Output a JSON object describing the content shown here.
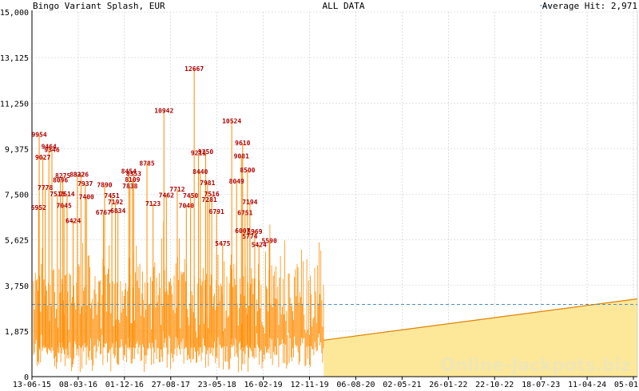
{
  "header": {
    "left_title": "Bingo Variant Splash, EUR",
    "center_title": "ALL DATA",
    "legend_label": "Average Hit: 2,971"
  },
  "watermark": "Online-Jackpots.biz",
  "colors": {
    "bars": "#ff8c00",
    "labels": "#b00000",
    "trend_fill": "#fde89a",
    "trend_line": "#e08000",
    "average_line": "#4a90c8",
    "grid": "#c8c8c8"
  },
  "chart_data": {
    "type": "bar",
    "title": "Bingo Variant Splash, EUR",
    "subtitle": "ALL DATA",
    "ylim": [
      0,
      15000
    ],
    "y_ticks": [
      "0",
      "1,875",
      "3,750",
      "5,625",
      "7,500",
      "9,375",
      "11,250",
      "13,125",
      "15,000"
    ],
    "x_ticks": [
      "13-06-15",
      "08-03-16",
      "01-12-16",
      "27-08-17",
      "23-05-18",
      "16-02-19",
      "12-11-19",
      "06-08-20",
      "02-05-21",
      "26-01-22",
      "22-10-22",
      "18-07-23",
      "11-04-24",
      "05-01-25"
    ],
    "grid": true,
    "average_hit": 2971,
    "data_start_fraction": 0.0,
    "data_end_fraction": 0.482,
    "trend_end_value": 3200,
    "trend_start_value": 1500,
    "labeled_peaks": [
      {
        "pos": 0.012,
        "value": 9954
      },
      {
        "pos": 0.018,
        "value": 9027
      },
      {
        "pos": 0.028,
        "value": 9464
      },
      {
        "pos": 0.033,
        "value": 9346
      },
      {
        "pos": 0.022,
        "value": 7778
      },
      {
        "pos": 0.011,
        "value": 6952
      },
      {
        "pos": 0.042,
        "value": 7513
      },
      {
        "pos": 0.051,
        "value": 8275
      },
      {
        "pos": 0.047,
        "value": 8096
      },
      {
        "pos": 0.058,
        "value": 7514
      },
      {
        "pos": 0.053,
        "value": 7045
      },
      {
        "pos": 0.068,
        "value": 6424
      },
      {
        "pos": 0.075,
        "value": 8322
      },
      {
        "pos": 0.081,
        "value": 8326
      },
      {
        "pos": 0.088,
        "value": 7937
      },
      {
        "pos": 0.09,
        "value": 7400
      },
      {
        "pos": 0.12,
        "value": 7890
      },
      {
        "pos": 0.132,
        "value": 7451
      },
      {
        "pos": 0.138,
        "value": 7192
      },
      {
        "pos": 0.118,
        "value": 6767
      },
      {
        "pos": 0.142,
        "value": 6834
      },
      {
        "pos": 0.16,
        "value": 8454
      },
      {
        "pos": 0.168,
        "value": 8353
      },
      {
        "pos": 0.162,
        "value": 7838
      },
      {
        "pos": 0.166,
        "value": 8109
      },
      {
        "pos": 0.19,
        "value": 8785
      },
      {
        "pos": 0.2,
        "value": 7123
      },
      {
        "pos": 0.218,
        "value": 10942
      },
      {
        "pos": 0.222,
        "value": 7462
      },
      {
        "pos": 0.24,
        "value": 7712
      },
      {
        "pos": 0.268,
        "value": 12667
      },
      {
        "pos": 0.255,
        "value": 7040
      },
      {
        "pos": 0.262,
        "value": 7450
      },
      {
        "pos": 0.275,
        "value": 9211
      },
      {
        "pos": 0.287,
        "value": 9250
      },
      {
        "pos": 0.278,
        "value": 8440
      },
      {
        "pos": 0.29,
        "value": 7981
      },
      {
        "pos": 0.297,
        "value": 7516
      },
      {
        "pos": 0.293,
        "value": 7281
      },
      {
        "pos": 0.33,
        "value": 10524
      },
      {
        "pos": 0.348,
        "value": 9610
      },
      {
        "pos": 0.346,
        "value": 9081
      },
      {
        "pos": 0.338,
        "value": 8049
      },
      {
        "pos": 0.356,
        "value": 8500
      },
      {
        "pos": 0.36,
        "value": 7194
      },
      {
        "pos": 0.352,
        "value": 6751
      },
      {
        "pos": 0.348,
        "value": 6007
      },
      {
        "pos": 0.368,
        "value": 5969
      },
      {
        "pos": 0.375,
        "value": 5424
      },
      {
        "pos": 0.392,
        "value": 5590
      },
      {
        "pos": 0.305,
        "value": 6791
      },
      {
        "pos": 0.315,
        "value": 5475
      },
      {
        "pos": 0.36,
        "value": 5774
      }
    ]
  }
}
